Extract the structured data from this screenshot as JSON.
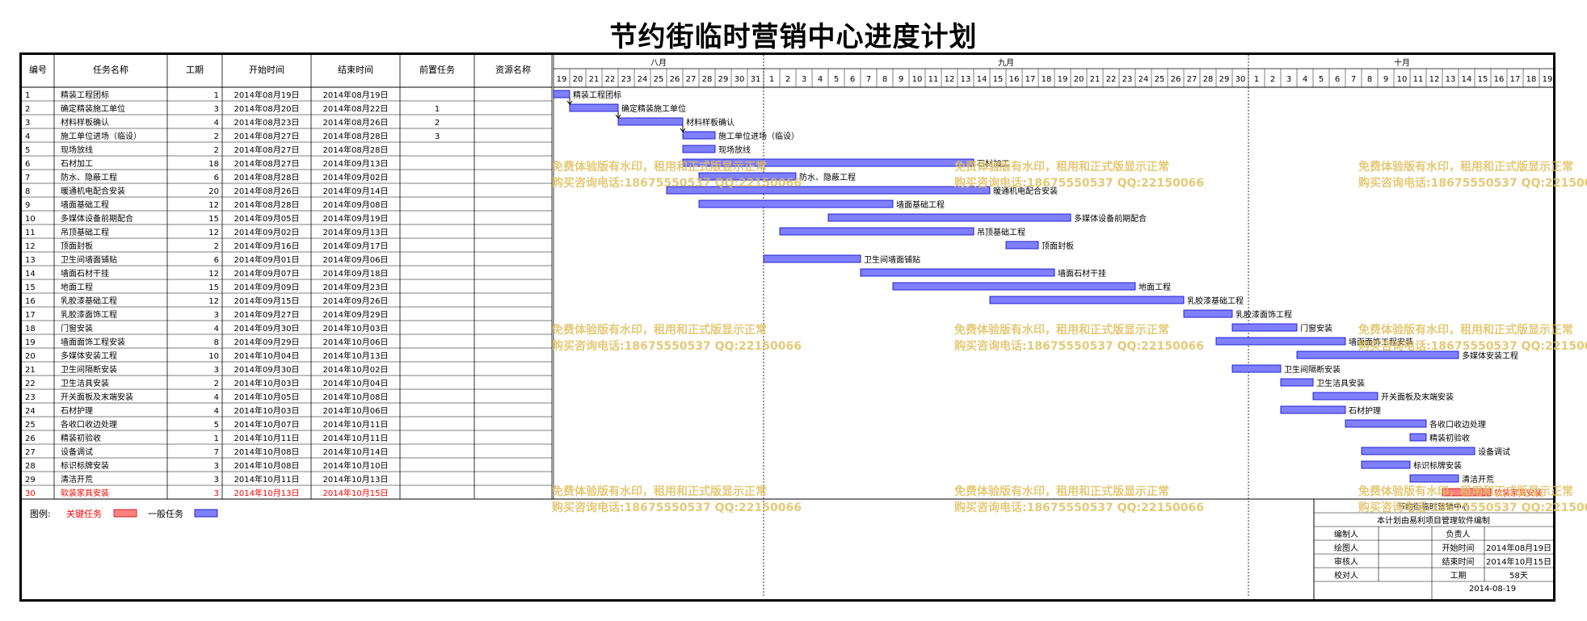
{
  "title": "节约街临时营销中心进度计划",
  "table_headers": [
    "编号",
    "任务名称",
    "工期",
    "开始时间",
    "结束时间",
    "前置任务",
    "资源名称"
  ],
  "months": [
    "八月",
    "九月",
    "十月"
  ],
  "day_labels": [
    "19",
    "20",
    "21",
    "22",
    "23",
    "24",
    "25",
    "26",
    "27",
    "28",
    "29",
    "30",
    "31",
    "1",
    "2",
    "3",
    "4",
    "5",
    "6",
    "7",
    "8",
    "9",
    "10",
    "11",
    "12",
    "13",
    "14",
    "15",
    "16",
    "17",
    "18",
    "19",
    "20",
    "21",
    "22",
    "23",
    "24",
    "25",
    "26",
    "27",
    "28",
    "29",
    "30",
    "1",
    "2",
    "3",
    "4",
    "5",
    "6",
    "7",
    "8",
    "9",
    "10",
    "11",
    "12",
    "13",
    "14",
    "15",
    "16",
    "17",
    "18",
    "19"
  ],
  "legend": {
    "label": "图例:",
    "critical": "关键任务",
    "normal": "一般任务"
  },
  "colors": {
    "critical": "#ff8080",
    "normal": "#8080ff",
    "critical_text": "#ff0000",
    "watermark": "#e0c060"
  },
  "watermark": {
    "line1": "免费体验版有水印，租用和正式版显示正常",
    "line2": "购买咨询电话:18675550537 QQ:22150066"
  },
  "info_box": {
    "header": "节约街临时营销中心",
    "subheader": "本计划由易利项目管理软件编制",
    "rows": [
      [
        "编制人",
        "",
        "负责人",
        ""
      ],
      [
        "绘图人",
        "",
        "开始时间",
        "2014年08月19日"
      ],
      [
        "审核人",
        "",
        "结束时间",
        "2014年10月15日"
      ],
      [
        "校对人",
        "",
        "工期",
        "58天"
      ]
    ],
    "date": "2014-08-19"
  },
  "chart_data": {
    "type": "gantt",
    "x_range": [
      "2014-08-19",
      "2014-10-19"
    ],
    "tasks": [
      {
        "id": "1",
        "name": "精装工程团标",
        "duration": "1",
        "start": "2014年08月19日",
        "end": "2014年08月19日",
        "pred": "",
        "resource": "",
        "critical": false
      },
      {
        "id": "2",
        "name": "确定精装施工单位",
        "duration": "3",
        "start": "2014年08月20日",
        "end": "2014年08月22日",
        "pred": "1",
        "resource": "",
        "critical": false
      },
      {
        "id": "3",
        "name": "材料样板确认",
        "duration": "4",
        "start": "2014年08月23日",
        "end": "2014年08月26日",
        "pred": "2",
        "resource": "",
        "critical": false
      },
      {
        "id": "4",
        "name": "施工单位进场（临设）",
        "duration": "2",
        "start": "2014年08月27日",
        "end": "2014年08月28日",
        "pred": "3",
        "resource": "",
        "critical": false
      },
      {
        "id": "5",
        "name": "现场放线",
        "duration": "2",
        "start": "2014年08月27日",
        "end": "2014年08月28日",
        "pred": "",
        "resource": "",
        "critical": false
      },
      {
        "id": "6",
        "name": "石材加工",
        "duration": "18",
        "start": "2014年08月27日",
        "end": "2014年09月13日",
        "pred": "",
        "resource": "",
        "critical": false
      },
      {
        "id": "7",
        "name": "防水、隐蔽工程",
        "duration": "6",
        "start": "2014年08月28日",
        "end": "2014年09月02日",
        "pred": "",
        "resource": "",
        "critical": false
      },
      {
        "id": "8",
        "name": "暖通机电配合安装",
        "duration": "20",
        "start": "2014年08月26日",
        "end": "2014年09月14日",
        "pred": "",
        "resource": "",
        "critical": false
      },
      {
        "id": "9",
        "name": "墙面基础工程",
        "duration": "12",
        "start": "2014年08月28日",
        "end": "2014年09月08日",
        "pred": "",
        "resource": "",
        "critical": false
      },
      {
        "id": "10",
        "name": "多媒体设备前期配合",
        "duration": "15",
        "start": "2014年09月05日",
        "end": "2014年09月19日",
        "pred": "",
        "resource": "",
        "critical": false
      },
      {
        "id": "11",
        "name": "吊顶基础工程",
        "duration": "12",
        "start": "2014年09月02日",
        "end": "2014年09月13日",
        "pred": "",
        "resource": "",
        "critical": false
      },
      {
        "id": "12",
        "name": "顶面封板",
        "duration": "2",
        "start": "2014年09月16日",
        "end": "2014年09月17日",
        "pred": "",
        "resource": "",
        "critical": false
      },
      {
        "id": "13",
        "name": "卫生间墙面铺贴",
        "duration": "6",
        "start": "2014年09月01日",
        "end": "2014年09月06日",
        "pred": "",
        "resource": "",
        "critical": false
      },
      {
        "id": "14",
        "name": "墙面石材干挂",
        "duration": "12",
        "start": "2014年09月07日",
        "end": "2014年09月18日",
        "pred": "",
        "resource": "",
        "critical": false
      },
      {
        "id": "15",
        "name": "地面工程",
        "duration": "15",
        "start": "2014年09月09日",
        "end": "2014年09月23日",
        "pred": "",
        "resource": "",
        "critical": false
      },
      {
        "id": "16",
        "name": "乳胶漆基础工程",
        "duration": "12",
        "start": "2014年09月15日",
        "end": "2014年09月26日",
        "pred": "",
        "resource": "",
        "critical": false
      },
      {
        "id": "17",
        "name": "乳胶漆面饰工程",
        "duration": "3",
        "start": "2014年09月27日",
        "end": "2014年09月29日",
        "pred": "",
        "resource": "",
        "critical": false
      },
      {
        "id": "18",
        "name": "门窗安装",
        "duration": "4",
        "start": "2014年09月30日",
        "end": "2014年10月03日",
        "pred": "",
        "resource": "",
        "critical": false
      },
      {
        "id": "19",
        "name": "墙面面饰工程安装",
        "duration": "8",
        "start": "2014年09月29日",
        "end": "2014年10月06日",
        "pred": "",
        "resource": "",
        "critical": false
      },
      {
        "id": "20",
        "name": "多媒体安装工程",
        "duration": "10",
        "start": "2014年10月04日",
        "end": "2014年10月13日",
        "pred": "",
        "resource": "",
        "critical": false
      },
      {
        "id": "21",
        "name": "卫生间隔断安装",
        "duration": "3",
        "start": "2014年09月30日",
        "end": "2014年10月02日",
        "pred": "",
        "resource": "",
        "critical": false
      },
      {
        "id": "22",
        "name": "卫生洁具安装",
        "duration": "2",
        "start": "2014年10月03日",
        "end": "2014年10月04日",
        "pred": "",
        "resource": "",
        "critical": false
      },
      {
        "id": "23",
        "name": "开关面板及末端安装",
        "duration": "4",
        "start": "2014年10月05日",
        "end": "2014年10月08日",
        "pred": "",
        "resource": "",
        "critical": false
      },
      {
        "id": "24",
        "name": "石材护理",
        "duration": "4",
        "start": "2014年10月03日",
        "end": "2014年10月06日",
        "pred": "",
        "resource": "",
        "critical": false
      },
      {
        "id": "25",
        "name": "各收口收边处理",
        "duration": "5",
        "start": "2014年10月07日",
        "end": "2014年10月11日",
        "pred": "",
        "resource": "",
        "critical": false
      },
      {
        "id": "26",
        "name": "精装初验收",
        "duration": "1",
        "start": "2014年10月11日",
        "end": "2014年10月11日",
        "pred": "",
        "resource": "",
        "critical": false
      },
      {
        "id": "27",
        "name": "设备调试",
        "duration": "7",
        "start": "2014年10月08日",
        "end": "2014年10月14日",
        "pred": "",
        "resource": "",
        "critical": false
      },
      {
        "id": "28",
        "name": "标识标牌安装",
        "duration": "3",
        "start": "2014年10月08日",
        "end": "2014年10月10日",
        "pred": "",
        "resource": "",
        "critical": false
      },
      {
        "id": "29",
        "name": "清洁开荒",
        "duration": "3",
        "start": "2014年10月11日",
        "end": "2014年10月13日",
        "pred": "",
        "resource": "",
        "critical": false
      },
      {
        "id": "30",
        "name": "软装家具安装",
        "duration": "3",
        "start": "2014年10月13日",
        "end": "2014年10月15日",
        "pred": "",
        "resource": "",
        "critical": true
      }
    ]
  }
}
